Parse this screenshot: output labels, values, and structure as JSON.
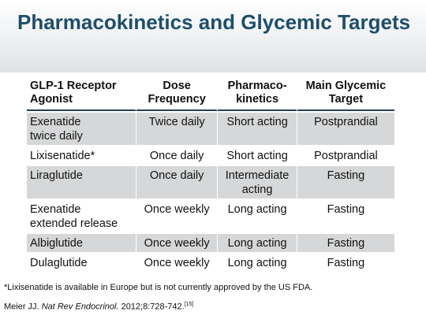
{
  "slide": {
    "title": "Pharmacokinetics and Glycemic Targets"
  },
  "table": {
    "headers": [
      [
        "GLP-1 Receptor",
        "Agonist"
      ],
      [
        "Dose",
        "Frequency"
      ],
      [
        "Pharmaco-",
        "kinetics"
      ],
      [
        "Main Glycemic",
        "Target"
      ]
    ],
    "rows": [
      [
        [
          "Exenatide",
          "twice daily"
        ],
        [
          "Twice daily"
        ],
        [
          "Short acting"
        ],
        [
          "Postprandial"
        ]
      ],
      [
        [
          "Lixisenatide*"
        ],
        [
          "Once daily"
        ],
        [
          "Short acting"
        ],
        [
          "Postprandial"
        ]
      ],
      [
        [
          "Liraglutide"
        ],
        [
          "Once daily"
        ],
        [
          "Intermediate",
          "acting"
        ],
        [
          "Fasting"
        ]
      ],
      [
        [
          "Exenatide",
          "extended release"
        ],
        [
          "Once weekly"
        ],
        [
          "Long acting"
        ],
        [
          "Fasting"
        ]
      ],
      [
        [
          "Albiglutide"
        ],
        [
          "Once weekly"
        ],
        [
          "Long acting"
        ],
        [
          "Fasting"
        ]
      ],
      [
        [
          "Dulaglutide"
        ],
        [
          "Once weekly"
        ],
        [
          "Long acting"
        ],
        [
          "Fasting"
        ]
      ]
    ]
  },
  "footnote": "*Lixisenatide is available in Europe but is not currently approved by the US FDA.",
  "citation": {
    "author": "Meier JJ. ",
    "journal": "Nat Rev Endocrinol.",
    "details": " 2012;8:728-742.",
    "ref": "[15]"
  },
  "colors": {
    "title": "#1d4e6b",
    "shaded_row": "#d6d7d8",
    "header_rule": "#1f3f5a"
  }
}
